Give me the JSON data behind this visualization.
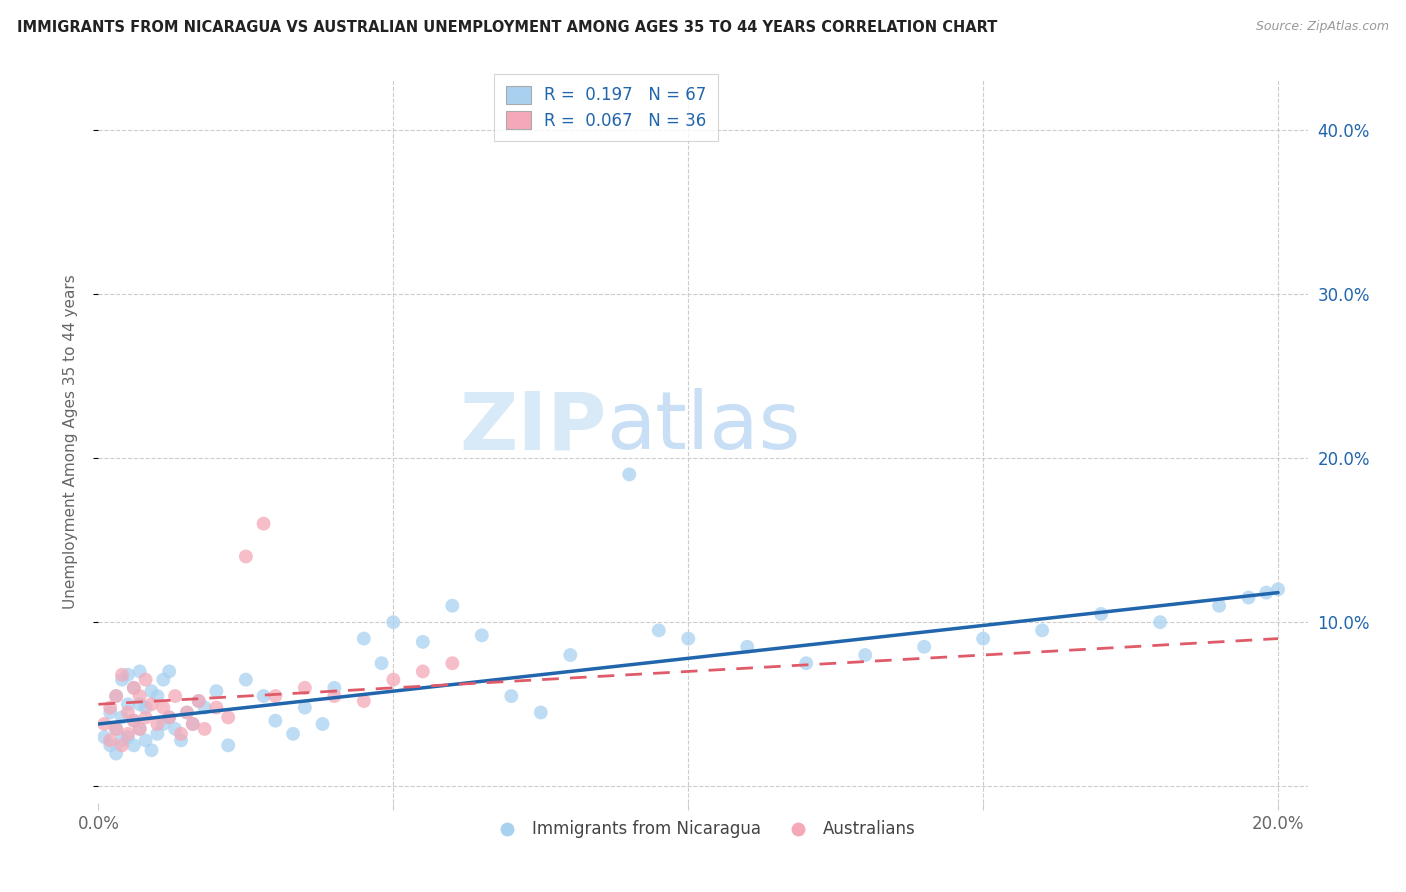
{
  "title": "IMMIGRANTS FROM NICARAGUA VS AUSTRALIAN UNEMPLOYMENT AMONG AGES 35 TO 44 YEARS CORRELATION CHART",
  "source": "Source: ZipAtlas.com",
  "ylabel": "Unemployment Among Ages 35 to 44 years",
  "xlim": [
    0.0,
    0.205
  ],
  "ylim": [
    -0.01,
    0.43
  ],
  "xticks": [
    0.0,
    0.05,
    0.1,
    0.15,
    0.2
  ],
  "xticklabels": [
    "0.0%",
    "",
    "",
    "",
    "20.0%"
  ],
  "yticks": [
    0.0,
    0.1,
    0.2,
    0.3,
    0.4
  ],
  "yticklabels": [
    "",
    "10.0%",
    "20.0%",
    "30.0%",
    "40.0%"
  ],
  "legend_labels": [
    "Immigrants from Nicaragua",
    "Australians"
  ],
  "blue_color": "#a8d1f0",
  "pink_color": "#f4a8b8",
  "blue_line_color": "#2166ac",
  "pink_line_color": "#e05b6a",
  "r_blue": 0.197,
  "n_blue": 67,
  "r_pink": 0.067,
  "n_pink": 36,
  "blue_scatter_x": [
    0.001,
    0.002,
    0.002,
    0.003,
    0.003,
    0.003,
    0.004,
    0.004,
    0.004,
    0.005,
    0.005,
    0.005,
    0.006,
    0.006,
    0.006,
    0.007,
    0.007,
    0.007,
    0.008,
    0.008,
    0.009,
    0.009,
    0.01,
    0.01,
    0.011,
    0.011,
    0.012,
    0.012,
    0.013,
    0.014,
    0.015,
    0.016,
    0.017,
    0.018,
    0.02,
    0.022,
    0.025,
    0.028,
    0.03,
    0.033,
    0.035,
    0.038,
    0.04,
    0.045,
    0.048,
    0.05,
    0.055,
    0.06,
    0.065,
    0.07,
    0.075,
    0.08,
    0.09,
    0.095,
    0.1,
    0.11,
    0.12,
    0.13,
    0.14,
    0.15,
    0.16,
    0.17,
    0.18,
    0.19,
    0.195,
    0.198,
    0.2
  ],
  "blue_scatter_y": [
    0.03,
    0.025,
    0.045,
    0.02,
    0.035,
    0.055,
    0.028,
    0.042,
    0.065,
    0.03,
    0.05,
    0.068,
    0.025,
    0.04,
    0.06,
    0.035,
    0.05,
    0.07,
    0.028,
    0.048,
    0.022,
    0.058,
    0.032,
    0.055,
    0.038,
    0.065,
    0.042,
    0.07,
    0.035,
    0.028,
    0.045,
    0.038,
    0.052,
    0.048,
    0.058,
    0.025,
    0.065,
    0.055,
    0.04,
    0.032,
    0.048,
    0.038,
    0.06,
    0.09,
    0.075,
    0.1,
    0.088,
    0.11,
    0.092,
    0.055,
    0.045,
    0.08,
    0.19,
    0.095,
    0.09,
    0.085,
    0.075,
    0.08,
    0.085,
    0.09,
    0.095,
    0.105,
    0.1,
    0.11,
    0.115,
    0.118,
    0.12
  ],
  "pink_scatter_x": [
    0.001,
    0.002,
    0.002,
    0.003,
    0.003,
    0.004,
    0.004,
    0.005,
    0.005,
    0.006,
    0.006,
    0.007,
    0.007,
    0.008,
    0.008,
    0.009,
    0.01,
    0.011,
    0.012,
    0.013,
    0.014,
    0.015,
    0.016,
    0.017,
    0.018,
    0.02,
    0.022,
    0.025,
    0.028,
    0.03,
    0.035,
    0.04,
    0.045,
    0.05,
    0.055,
    0.06
  ],
  "pink_scatter_y": [
    0.038,
    0.028,
    0.048,
    0.035,
    0.055,
    0.025,
    0.068,
    0.032,
    0.045,
    0.04,
    0.06,
    0.035,
    0.055,
    0.042,
    0.065,
    0.05,
    0.038,
    0.048,
    0.042,
    0.055,
    0.032,
    0.045,
    0.038,
    0.052,
    0.035,
    0.048,
    0.042,
    0.14,
    0.16,
    0.055,
    0.06,
    0.055,
    0.052,
    0.065,
    0.07,
    0.075
  ],
  "blue_trend_x": [
    0.0,
    0.2
  ],
  "blue_trend_y": [
    0.038,
    0.118
  ],
  "pink_trend_x": [
    0.0,
    0.2
  ],
  "pink_trend_y": [
    0.05,
    0.09
  ],
  "background_color": "#ffffff",
  "grid_color": "#cccccc",
  "title_color": "#222222",
  "axis_color": "#666666"
}
